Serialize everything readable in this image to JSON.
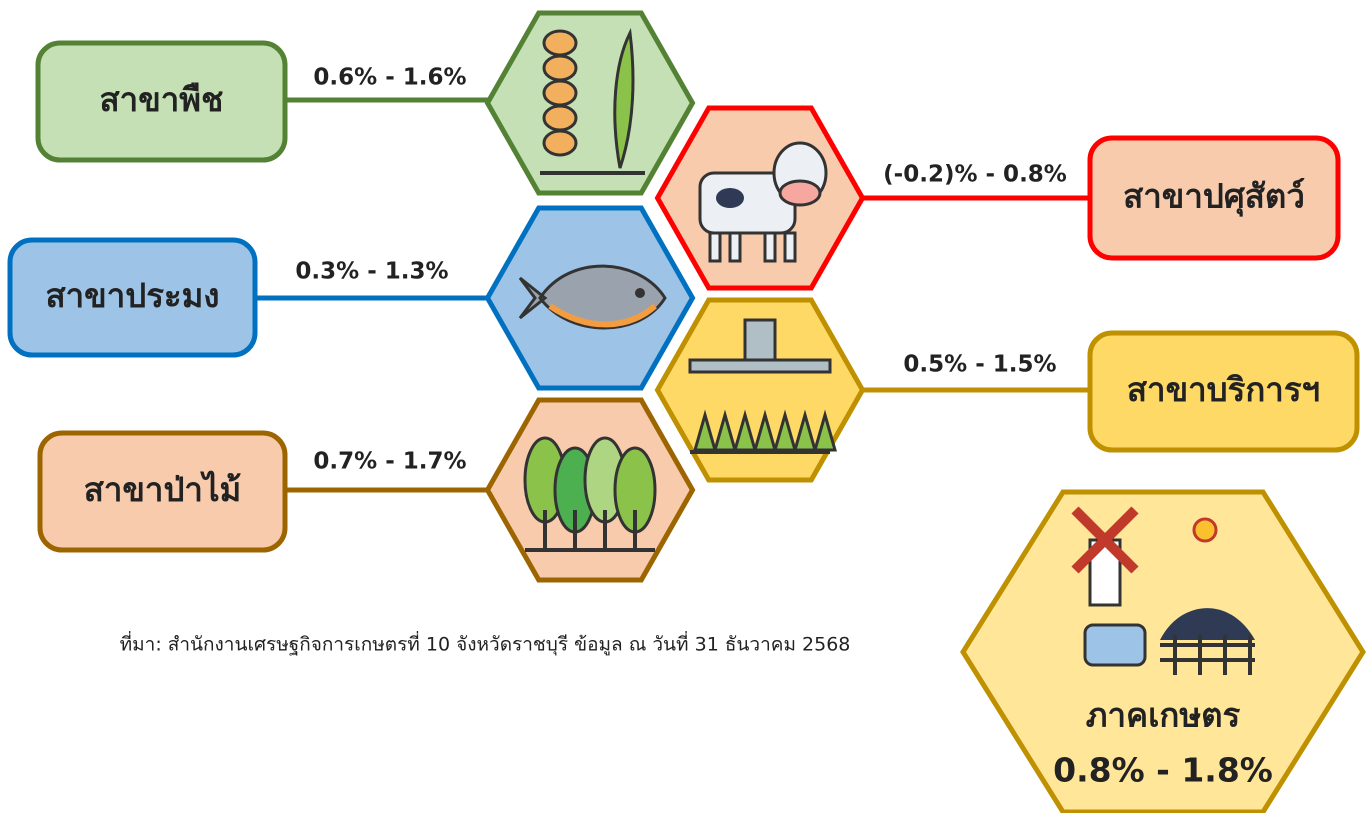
{
  "sectors": [
    {
      "name": "สาขาพืช",
      "range": "0.6% - 1.6%"
    },
    {
      "name": "สาขาปศุสัตว์",
      "range": "(-0.2)% - 0.8%"
    },
    {
      "name": "สาขาประมง",
      "range": "0.3% - 1.3%"
    },
    {
      "name": "สาขาบริการฯ",
      "range": "0.5% - 1.5%"
    },
    {
      "name": "สาขาป่าไม้",
      "range": "0.7% - 1.7%"
    }
  ],
  "source": "ที่มา: สำนักงานเศรษฐกิจการเกษตรที่ 10 จังหวัดราชบุรี ข้อมูล ณ วันที่ 31 ธันวาคม 2568",
  "total": {
    "name": "ภาคเกษตร",
    "range": "0.8% - 1.8%"
  }
}
